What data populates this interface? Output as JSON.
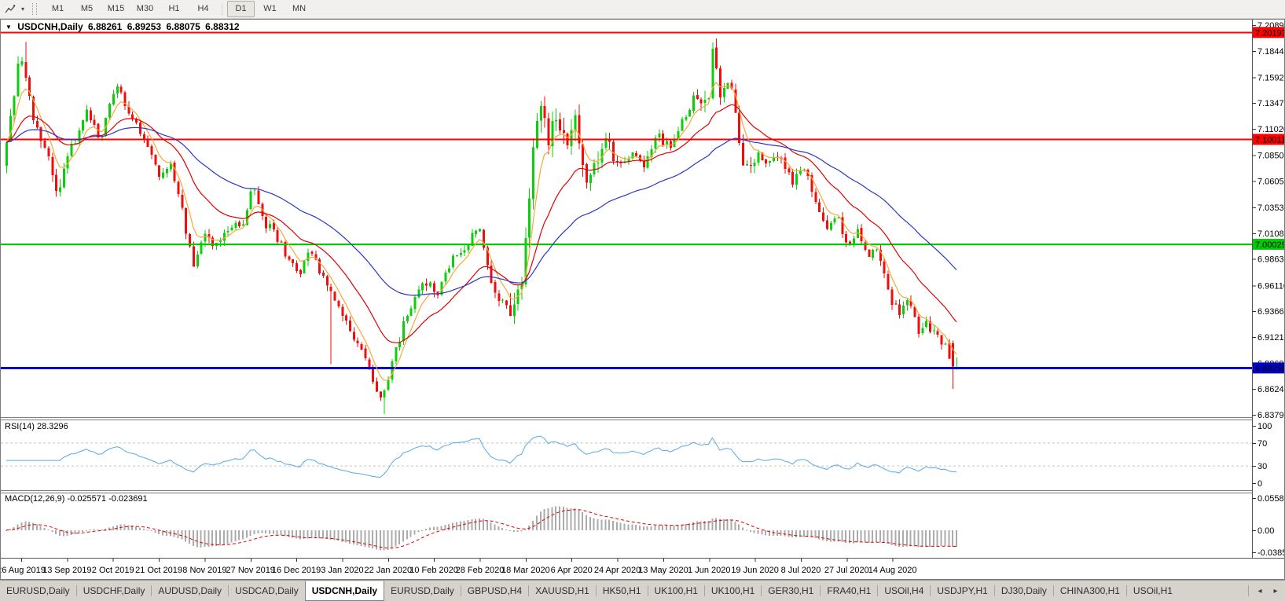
{
  "toolbar": {
    "caret": "▾",
    "periods": [
      "M1",
      "M5",
      "M15",
      "M30",
      "H1",
      "H4",
      "D1",
      "W1",
      "MN"
    ],
    "active_period": "D1"
  },
  "chart": {
    "title": "USDCNH,Daily",
    "context_caret": "▼"
  },
  "chart_data": {
    "type": "candlestick",
    "symbol": "USDCNH",
    "timeframe": "Daily",
    "current_bar": {
      "open": "6.88261",
      "high": "6.89253",
      "low": "6.88075",
      "close": "6.88312"
    },
    "previous_bar": {
      "open": 6.906,
      "high": 6.9085,
      "low": 6.8626,
      "close": 6.8838
    },
    "bar_count": 250,
    "price_range": {
      "top": 7.2089,
      "bottom": 6.8379
    },
    "y_axis_ticks": [
      "7.20890",
      "7.18440",
      "7.15920",
      "7.13470",
      "7.11020",
      "7.08500",
      "7.06050",
      "7.03530",
      "7.01080",
      "6.98630",
      "6.96110",
      "6.93660",
      "6.91210",
      "6.88690",
      "6.86240",
      "6.83790"
    ],
    "x_axis_labels": [
      "26 Aug 2019",
      "13 Sep 2019",
      "2 Oct 2019",
      "21 Oct 2019",
      "8 Nov 2019",
      "27 Nov 2019",
      "16 Dec 2019",
      "3 Jan 2020",
      "22 Jan 2020",
      "10 Feb 2020",
      "28 Feb 2020",
      "18 Mar 2020",
      "6 Apr 2020",
      "24 Apr 2020",
      "13 May 2020",
      "1 Jun 2020",
      "19 Jun 2020",
      "8 Jul 2020",
      "27 Jul 2020",
      "14 Aug 2020"
    ],
    "horizontal_lines": [
      {
        "label": "7.20193",
        "value": 7.20193,
        "color": "#ff0000",
        "width": 2
      },
      {
        "label": "7.10011",
        "value": 7.10011,
        "color": "#ff0000",
        "width": 2
      },
      {
        "label": "7.00029",
        "value": 7.00029,
        "color": "#00cc00",
        "width": 2
      },
      {
        "label": "6.88250",
        "value": 6.8825,
        "color": "#0000cd",
        "width": 3
      }
    ],
    "candle_up_color": "#0acf0a",
    "candle_down_color": "#f20c0c",
    "moving_averages": [
      {
        "name": "fast-ma",
        "period": 6,
        "color": "#f7a838"
      },
      {
        "name": "mid-ma",
        "period": 20,
        "color": "#e00000"
      },
      {
        "name": "slow-ma",
        "period": 50,
        "color": "#2b35c8"
      }
    ],
    "price_path": [
      [
        0.0,
        7.075
      ],
      [
        0.017,
        7.18
      ],
      [
        0.031,
        7.12
      ],
      [
        0.048,
        7.085
      ],
      [
        0.056,
        7.05
      ],
      [
        0.073,
        7.095
      ],
      [
        0.089,
        7.13
      ],
      [
        0.102,
        7.1
      ],
      [
        0.118,
        7.15
      ],
      [
        0.127,
        7.135
      ],
      [
        0.147,
        7.1
      ],
      [
        0.164,
        7.065
      ],
      [
        0.178,
        7.075
      ],
      [
        0.193,
        7.01
      ],
      [
        0.201,
        6.975
      ],
      [
        0.211,
        7.01
      ],
      [
        0.224,
        6.995
      ],
      [
        0.238,
        7.02
      ],
      [
        0.251,
        7.015
      ],
      [
        0.263,
        7.06
      ],
      [
        0.274,
        7.02
      ],
      [
        0.286,
        7.012
      ],
      [
        0.299,
        6.985
      ],
      [
        0.313,
        6.975
      ],
      [
        0.325,
        6.995
      ],
      [
        0.34,
        6.96
      ],
      [
        0.354,
        6.935
      ],
      [
        0.367,
        6.915
      ],
      [
        0.379,
        6.9
      ],
      [
        0.39,
        6.862
      ],
      [
        0.398,
        6.85
      ],
      [
        0.406,
        6.878
      ],
      [
        0.418,
        6.915
      ],
      [
        0.433,
        6.95
      ],
      [
        0.445,
        6.965
      ],
      [
        0.458,
        6.955
      ],
      [
        0.473,
        6.985
      ],
      [
        0.487,
        7.0
      ],
      [
        0.501,
        7.015
      ],
      [
        0.514,
        6.96
      ],
      [
        0.526,
        6.945
      ],
      [
        0.536,
        6.932
      ],
      [
        0.547,
        6.975
      ],
      [
        0.557,
        7.08
      ],
      [
        0.565,
        7.145
      ],
      [
        0.574,
        7.1
      ],
      [
        0.584,
        7.125
      ],
      [
        0.592,
        7.095
      ],
      [
        0.603,
        7.115
      ],
      [
        0.613,
        7.05
      ],
      [
        0.623,
        7.07
      ],
      [
        0.636,
        7.095
      ],
      [
        0.648,
        7.07
      ],
      [
        0.661,
        7.085
      ],
      [
        0.673,
        7.075
      ],
      [
        0.688,
        7.105
      ],
      [
        0.702,
        7.09
      ],
      [
        0.716,
        7.12
      ],
      [
        0.731,
        7.145
      ],
      [
        0.741,
        7.13
      ],
      [
        0.747,
        7.185
      ],
      [
        0.754,
        7.14
      ],
      [
        0.764,
        7.155
      ],
      [
        0.775,
        7.1
      ],
      [
        0.782,
        7.065
      ],
      [
        0.793,
        7.09
      ],
      [
        0.805,
        7.075
      ],
      [
        0.818,
        7.085
      ],
      [
        0.83,
        7.06
      ],
      [
        0.843,
        7.07
      ],
      [
        0.855,
        7.045
      ],
      [
        0.868,
        7.01
      ],
      [
        0.878,
        7.03
      ],
      [
        0.888,
        6.995
      ],
      [
        0.898,
        7.015
      ],
      [
        0.909,
        6.985
      ],
      [
        0.92,
        6.995
      ],
      [
        0.931,
        6.955
      ],
      [
        0.942,
        6.935
      ],
      [
        0.953,
        6.945
      ],
      [
        0.963,
        6.915
      ],
      [
        0.973,
        6.925
      ],
      [
        0.984,
        6.91
      ],
      [
        0.992,
        6.905
      ],
      [
        1.0,
        6.883
      ]
    ],
    "spikes": [
      {
        "f": 0.019,
        "high": 7.193
      },
      {
        "f": 0.34,
        "low": 6.886
      },
      {
        "f": 0.398,
        "low": 6.8385
      },
      {
        "f": 0.747,
        "high": 7.196
      }
    ],
    "rsi": {
      "label": "RSI(14)",
      "value": "28.3296",
      "line_color": "#57a8e8",
      "scale_labels": [
        "100",
        "70",
        "30",
        "0"
      ],
      "level_lines": [
        70,
        30
      ]
    },
    "macd": {
      "label": "MACD(12,26,9)",
      "values": "-0.025571 -0.023691",
      "histogram_color": "#ababab",
      "signal_color": "#e30000",
      "scale_labels": [
        "0.05581",
        "0.00",
        "-0.03852"
      ],
      "scale_top": 0.05581,
      "scale_bottom": -0.03852
    }
  },
  "tabs": {
    "items": [
      "EURUSD,Daily",
      "USDCHF,Daily",
      "AUDUSD,Daily",
      "USDCAD,Daily",
      "USDCNH,Daily",
      "EURUSD,Daily",
      "GBPUSD,H4",
      "XAUUSD,H1",
      "HK50,H1",
      "UK100,H1",
      "UK100,H1",
      "GER30,H1",
      "FRA40,H1",
      "USOil,H4",
      "USDJPY,H1",
      "DJ30,Daily",
      "CHINA300,H1",
      "USOil,H1"
    ],
    "active_index": 4,
    "scroll_left": "◂",
    "scroll_right": "▸"
  }
}
